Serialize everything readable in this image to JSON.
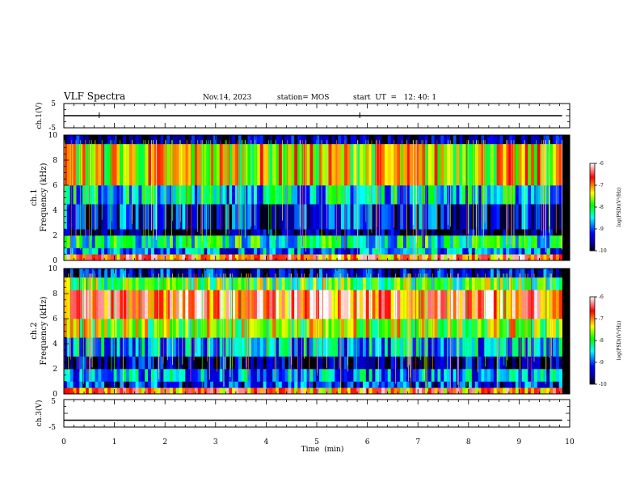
{
  "header": {
    "title": "VLF Spectra",
    "date": "Nov.14, 2023",
    "station": "station= MOS",
    "start_ut": "start  UT  =   12: 40: 1"
  },
  "chart_data": [
    {
      "type": "line",
      "panel": "ch1-voltage",
      "ylabel": "ch.1(V)",
      "yticks": [
        "5",
        "-5"
      ],
      "ylim": [
        -5,
        5
      ],
      "xlim": [
        0,
        10
      ],
      "series": [
        {
          "x": [
            0,
            0.7,
            5.85,
            9.85
          ],
          "y": [
            0,
            0,
            0,
            0
          ]
        }
      ]
    },
    {
      "type": "heatmap",
      "panel": "ch1-spectrogram",
      "ylabel": "Frequency (kHz)",
      "ylabel2": "ch.1",
      "yticks": [
        "0",
        "2",
        "4",
        "6",
        "8",
        "10"
      ],
      "ylim": [
        0,
        10
      ],
      "xlim": [
        0,
        9.85
      ],
      "colorbar": {
        "label": "log(PSD)(V²/Hz)",
        "ticks": [
          "-6",
          "-7",
          "-8",
          "-9",
          "-10"
        ],
        "range": [
          -10,
          -6
        ]
      },
      "bands_khz": [
        {
          "range": [
            0,
            0.5
          ],
          "level": -6.8
        },
        {
          "range": [
            0.5,
            1.0
          ],
          "level": -8.9
        },
        {
          "range": [
            1.0,
            2.0
          ],
          "level": -8.3
        },
        {
          "range": [
            2.0,
            2.5
          ],
          "level": -9.8
        },
        {
          "range": [
            2.5,
            4.5
          ],
          "level": -9.3
        },
        {
          "range": [
            4.5,
            6.0
          ],
          "level": -8.5
        },
        {
          "range": [
            6.0,
            9.3
          ],
          "level": -7.4
        },
        {
          "range": [
            9.3,
            10.0
          ],
          "level": -9.7
        }
      ]
    },
    {
      "type": "heatmap",
      "panel": "ch2-spectrogram",
      "ylabel": "Frequency (kHz)",
      "ylabel2": "ch.2",
      "yticks": [
        "0",
        "2",
        "4",
        "6",
        "8",
        "10"
      ],
      "ylim": [
        0,
        10
      ],
      "xlim": [
        0,
        9.85
      ],
      "colorbar": {
        "label": "log(PSD)(V²/Hz)",
        "ticks": [
          "-6",
          "-7",
          "-8",
          "-9",
          "-10"
        ],
        "range": [
          -10,
          -6
        ]
      },
      "bands_khz": [
        {
          "range": [
            0,
            0.5
          ],
          "level": -6.9
        },
        {
          "range": [
            0.5,
            1.0
          ],
          "level": -9.2
        },
        {
          "range": [
            1.0,
            2.0
          ],
          "level": -8.8
        },
        {
          "range": [
            2.0,
            3.0
          ],
          "level": -9.6
        },
        {
          "range": [
            3.0,
            4.5
          ],
          "level": -8.8
        },
        {
          "range": [
            4.5,
            6.0
          ],
          "level": -7.6
        },
        {
          "range": [
            6.0,
            8.3
          ],
          "level": -6.6
        },
        {
          "range": [
            8.3,
            9.3
          ],
          "level": -7.9
        },
        {
          "range": [
            9.3,
            10.0
          ],
          "level": -9.4
        }
      ]
    },
    {
      "type": "line",
      "panel": "ch3-voltage",
      "ylabel": "ch.3(V)",
      "yticks": [
        "5",
        "-5"
      ],
      "ylim": [
        -5,
        5
      ],
      "xlim": [
        0,
        10
      ],
      "series": [
        {
          "x": [
            0,
            9.85
          ],
          "y": [
            -2.5,
            -2.5
          ]
        }
      ]
    }
  ],
  "xaxis": {
    "label": "Time  (min)",
    "ticks": [
      "0",
      "1",
      "2",
      "3",
      "4",
      "5",
      "6",
      "7",
      "8",
      "9",
      "10"
    ],
    "range": [
      0,
      10
    ]
  },
  "colors": {
    "background": "#ffffff",
    "axes": "#000000",
    "colormap": [
      "#000000",
      "#00008b",
      "#0000ff",
      "#00ffff",
      "#00ff00",
      "#ffff00",
      "#ff0000",
      "#ffffff"
    ]
  }
}
